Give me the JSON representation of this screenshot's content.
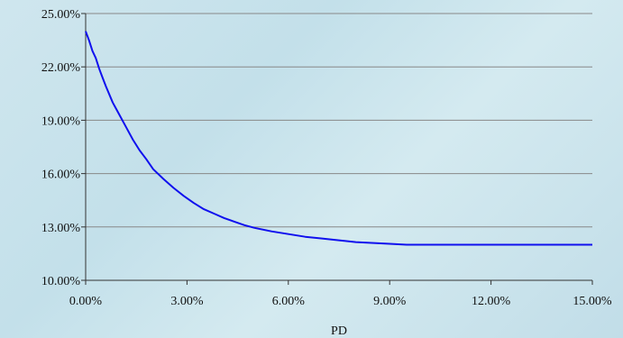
{
  "chart_data": {
    "type": "line",
    "title": "",
    "xlabel": "PD",
    "ylabel": "",
    "xlim": [
      0,
      0.15
    ],
    "ylim": [
      0.1,
      0.25
    ],
    "x_ticks": [
      0,
      0.03,
      0.06,
      0.09,
      0.12,
      0.15
    ],
    "y_ticks": [
      0.1,
      0.13,
      0.16,
      0.19,
      0.22,
      0.25
    ],
    "x_tick_labels": [
      "0.00%",
      "3.00%",
      "6.00%",
      "9.00%",
      "12.00%",
      "15.00%"
    ],
    "y_tick_labels": [
      "10.00%",
      "13.00%",
      "16.00%",
      "19.00%",
      "22.00%",
      "25.00%"
    ],
    "grid": "horizontal",
    "legend": "none",
    "colors": {
      "line": "#1010ee",
      "grid": "#888888",
      "axis": "#333333"
    },
    "series": [
      {
        "x": [
          0.0,
          0.001,
          0.002,
          0.003,
          0.004,
          0.005,
          0.006,
          0.008,
          0.01,
          0.012,
          0.014,
          0.016,
          0.018,
          0.02,
          0.023,
          0.026,
          0.029,
          0.032,
          0.035,
          0.038,
          0.041,
          0.044,
          0.047,
          0.05,
          0.055,
          0.06,
          0.065,
          0.07,
          0.075,
          0.08,
          0.09,
          0.095,
          0.1,
          0.11,
          0.12,
          0.13,
          0.14,
          0.15
        ],
        "y": [
          0.24,
          0.235,
          0.229,
          0.225,
          0.219,
          0.214,
          0.209,
          0.2,
          0.193,
          0.186,
          0.179,
          0.173,
          0.168,
          0.1625,
          0.157,
          0.152,
          0.1475,
          0.1435,
          0.14,
          0.1375,
          0.135,
          0.133,
          0.131,
          0.1295,
          0.1275,
          0.126,
          0.1245,
          0.1235,
          0.1225,
          0.1215,
          0.1205,
          0.12,
          0.12,
          0.12,
          0.12,
          0.12,
          0.12,
          0.12
        ]
      }
    ]
  }
}
